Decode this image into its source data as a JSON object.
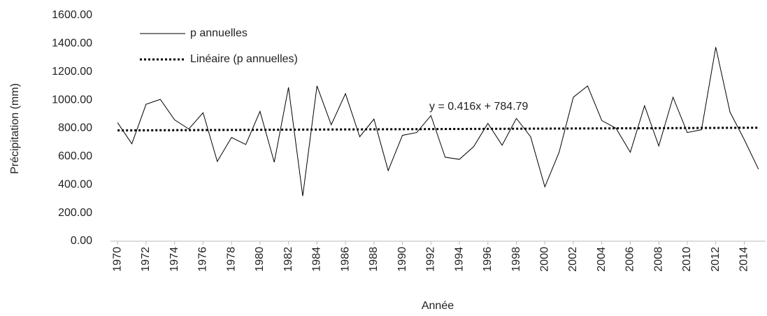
{
  "chart_data": {
    "type": "line",
    "y_label": "Précipitation (mm)",
    "x_label": "Année",
    "annotation": "y = 0.416x + 784.79",
    "x": [
      1970,
      1971,
      1972,
      1973,
      1974,
      1975,
      1976,
      1977,
      1978,
      1979,
      1980,
      1981,
      1982,
      1983,
      1984,
      1985,
      1986,
      1987,
      1988,
      1989,
      1990,
      1991,
      1992,
      1993,
      1994,
      1995,
      1996,
      1997,
      1998,
      1999,
      2000,
      2001,
      2002,
      2003,
      2004,
      2005,
      2006,
      2007,
      2008,
      2009,
      2010,
      2011,
      2012,
      2013,
      2014,
      2015
    ],
    "series": [
      {
        "name": "p annuelles",
        "color": "#000000",
        "style": "solid",
        "values": [
          840,
          690,
          970,
          1005,
          860,
          795,
          910,
          565,
          735,
          685,
          920,
          560,
          1090,
          320,
          1100,
          825,
          1045,
          740,
          865,
          500,
          750,
          770,
          890,
          595,
          580,
          670,
          835,
          680,
          870,
          740,
          385,
          630,
          1020,
          1100,
          855,
          800,
          630,
          960,
          675,
          1020,
          770,
          790,
          1375,
          915,
          720,
          510
        ]
      },
      {
        "name": "Linéaire (p annuelles)",
        "color": "#000000",
        "style": "dotted",
        "x": [
          1970,
          2015
        ],
        "values": [
          785,
          804
        ]
      }
    ],
    "xlim": [
      1969.5,
      2015.5
    ],
    "xticks": [
      1970,
      1972,
      1974,
      1976,
      1978,
      1980,
      1982,
      1984,
      1986,
      1988,
      1990,
      1992,
      1994,
      1996,
      1998,
      2000,
      2002,
      2004,
      2006,
      2008,
      2010,
      2012,
      2014
    ],
    "ylim": [
      0,
      1600
    ],
    "yticks": [
      {
        "value": 0,
        "label": "0.00"
      },
      {
        "value": 200,
        "label": "200.00"
      },
      {
        "value": 400,
        "label": "400.00"
      },
      {
        "value": 600,
        "label": "600.00"
      },
      {
        "value": 800,
        "label": "800.00"
      },
      {
        "value": 1000,
        "label": "1000.00"
      },
      {
        "value": 1200,
        "label": "1200.00"
      },
      {
        "value": 1400,
        "label": "1400.00"
      },
      {
        "value": 1600,
        "label": "1600.00"
      }
    ],
    "grid": false,
    "legend": "top-left"
  }
}
